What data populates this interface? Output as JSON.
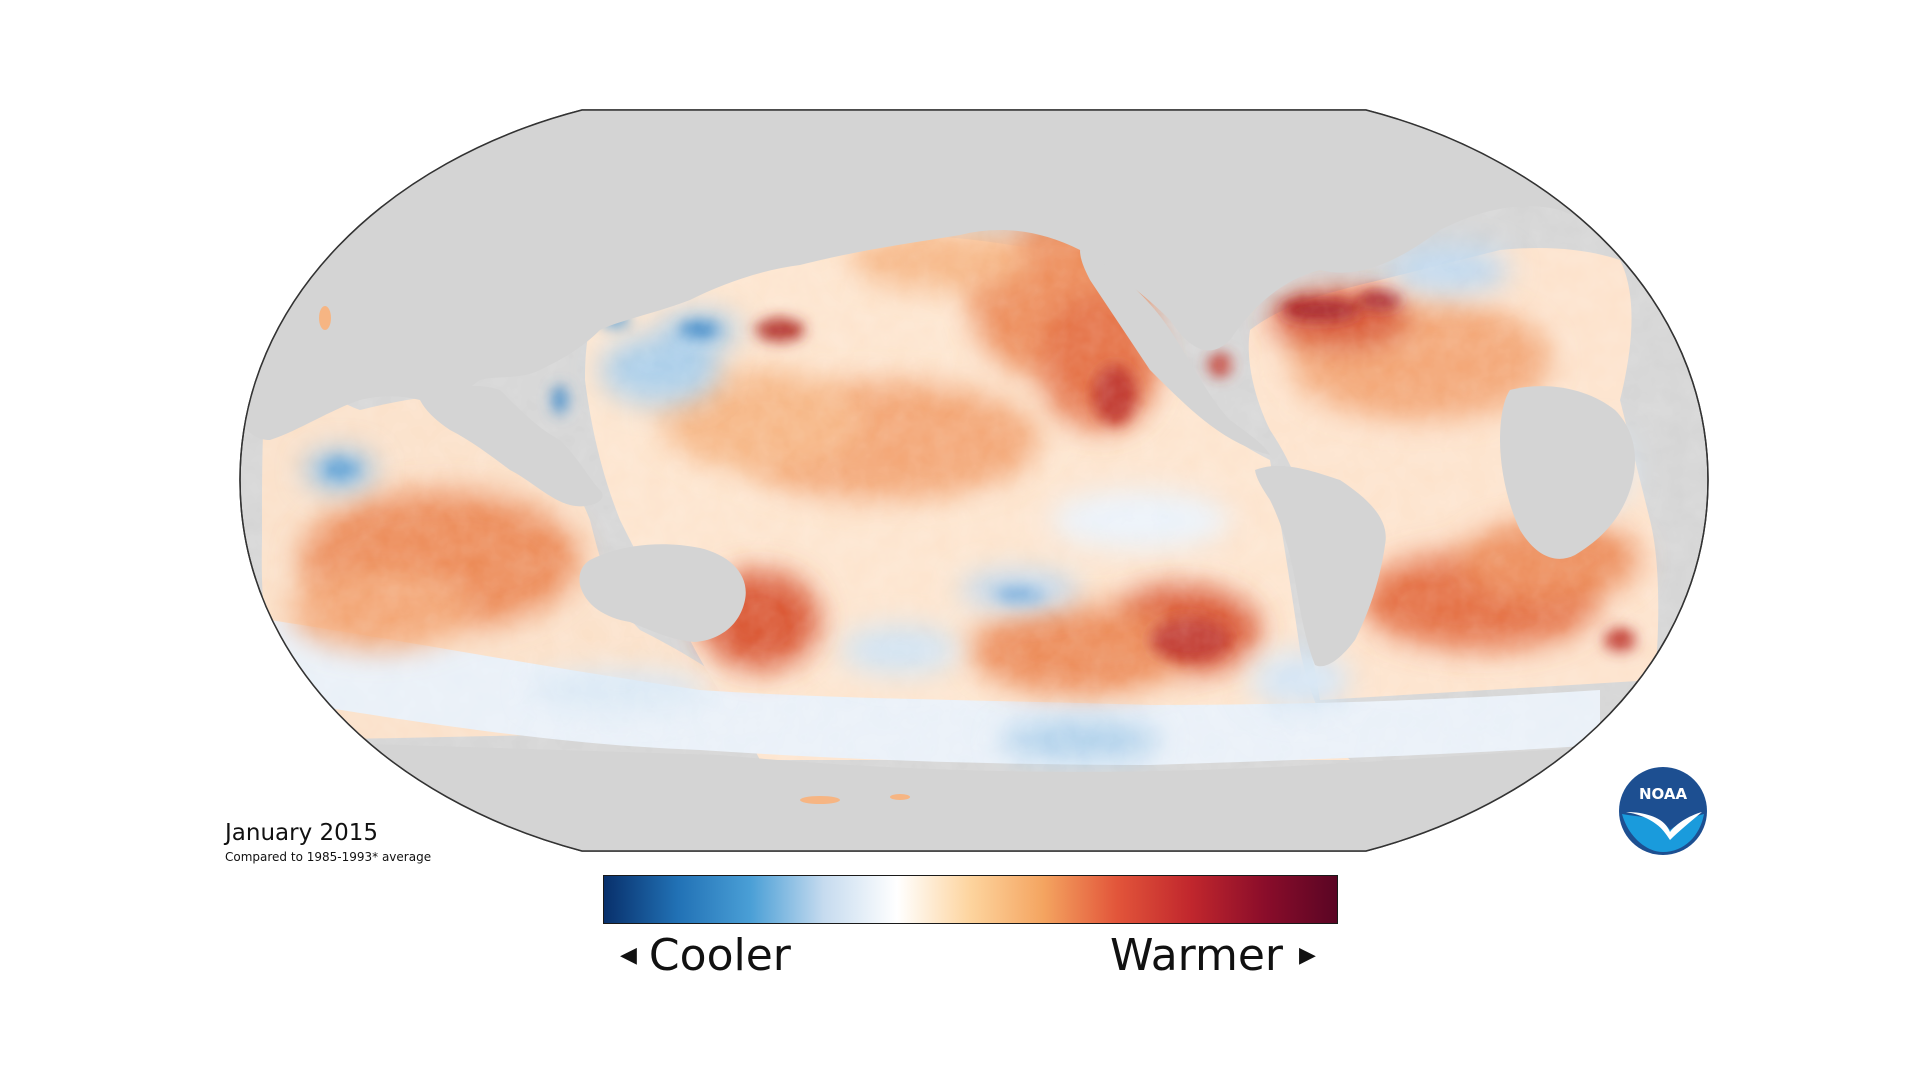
{
  "title": {
    "date": "January 2015",
    "subtitle": "Compared to 1985-1993* average"
  },
  "legend": {
    "low_label": "Cooler",
    "high_label": "Warmer",
    "low_arrow_icon": "triangle-left-icon",
    "high_arrow_icon": "triangle-right-icon",
    "gradient_colors": [
      "#08306b",
      "#2171b5",
      "#4a9fd6",
      "#c6dbef",
      "#ffffff",
      "#fdd49e",
      "#f4a460",
      "#e2553a",
      "#c1272d",
      "#8b0d2a",
      "#5a0524"
    ]
  },
  "logo": {
    "text": "NOAA",
    "colors": {
      "ring": "#1d4f91",
      "inner": "#1a9bdc",
      "bird": "#ffffff"
    }
  },
  "map": {
    "ocean_color": "#ffffff",
    "land_color": "#d4d4d4",
    "border_color": "#333333",
    "anomaly_colors": {
      "warm_light": "#f6b583",
      "warm": "#ec8a56",
      "warm_strong": "#d9532d",
      "hot": "#a51e23",
      "cool_light": "#cfe2f3",
      "cool": "#8dbde3",
      "cool_strong": "#3b86c6"
    }
  }
}
